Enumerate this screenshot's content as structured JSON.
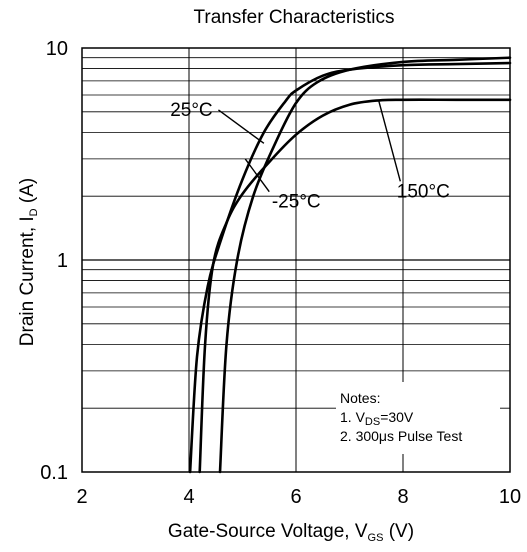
{
  "chart_data": {
    "type": "line",
    "title": "Transfer Characteristics",
    "xlabel": {
      "main": "Gate-Source Voltage, V",
      "sub": "GS",
      "unit": " (V)"
    },
    "ylabel": {
      "main": "Drain Current, I",
      "sub": "D",
      "unit": " (A)"
    },
    "xlim": [
      2,
      10
    ],
    "ylim": [
      0.1,
      10
    ],
    "yscale": "log",
    "grid": true,
    "x_ticks": [
      "2",
      "4",
      "6",
      "8",
      "10"
    ],
    "y_ticks": [
      "0.1",
      "1",
      "10"
    ],
    "series": [
      {
        "name": "25°C",
        "x": [
          4.02,
          4.15,
          4.35,
          4.6,
          5.0,
          5.4,
          5.8,
          6.0,
          6.5,
          7.0,
          8.0,
          9.0,
          10.0
        ],
        "y": [
          0.1,
          0.35,
          0.75,
          1.25,
          2.4,
          4.0,
          5.6,
          6.3,
          7.4,
          7.9,
          8.3,
          8.4,
          8.5
        ]
      },
      {
        "name": "-25°C",
        "x": [
          4.58,
          4.7,
          4.9,
          5.2,
          5.6,
          6.0,
          6.4,
          7.0,
          8.0,
          9.0,
          10.0
        ],
        "y": [
          0.1,
          0.4,
          1.0,
          2.0,
          3.5,
          5.5,
          6.9,
          7.9,
          8.6,
          8.8,
          9.0
        ]
      },
      {
        "name": "150°C",
        "x": [
          4.2,
          4.3,
          4.45,
          4.7,
          5.0,
          5.5,
          6.0,
          6.5,
          7.0,
          7.5,
          8.0,
          9.0,
          10.0
        ],
        "y": [
          0.1,
          0.4,
          0.95,
          1.5,
          2.05,
          2.9,
          3.9,
          4.8,
          5.4,
          5.65,
          5.7,
          5.7,
          5.7
        ]
      }
    ],
    "annotations": [
      {
        "label": "25°C",
        "from": [
          4.55,
          5.1
        ],
        "to": [
          5.4,
          3.55
        ]
      },
      {
        "label": "-25°C",
        "from": [
          5.5,
          2.1
        ],
        "to": [
          5.05,
          3.0
        ]
      },
      {
        "label": "150°C",
        "from": [
          7.95,
          2.35
        ],
        "to": [
          7.55,
          5.6
        ]
      }
    ],
    "notes": {
      "header": "Notes:",
      "line1": {
        "prefix": "1. V",
        "sub": "DS",
        "rest": "=30V"
      },
      "line2": "2. 300μs Pulse Test"
    }
  }
}
